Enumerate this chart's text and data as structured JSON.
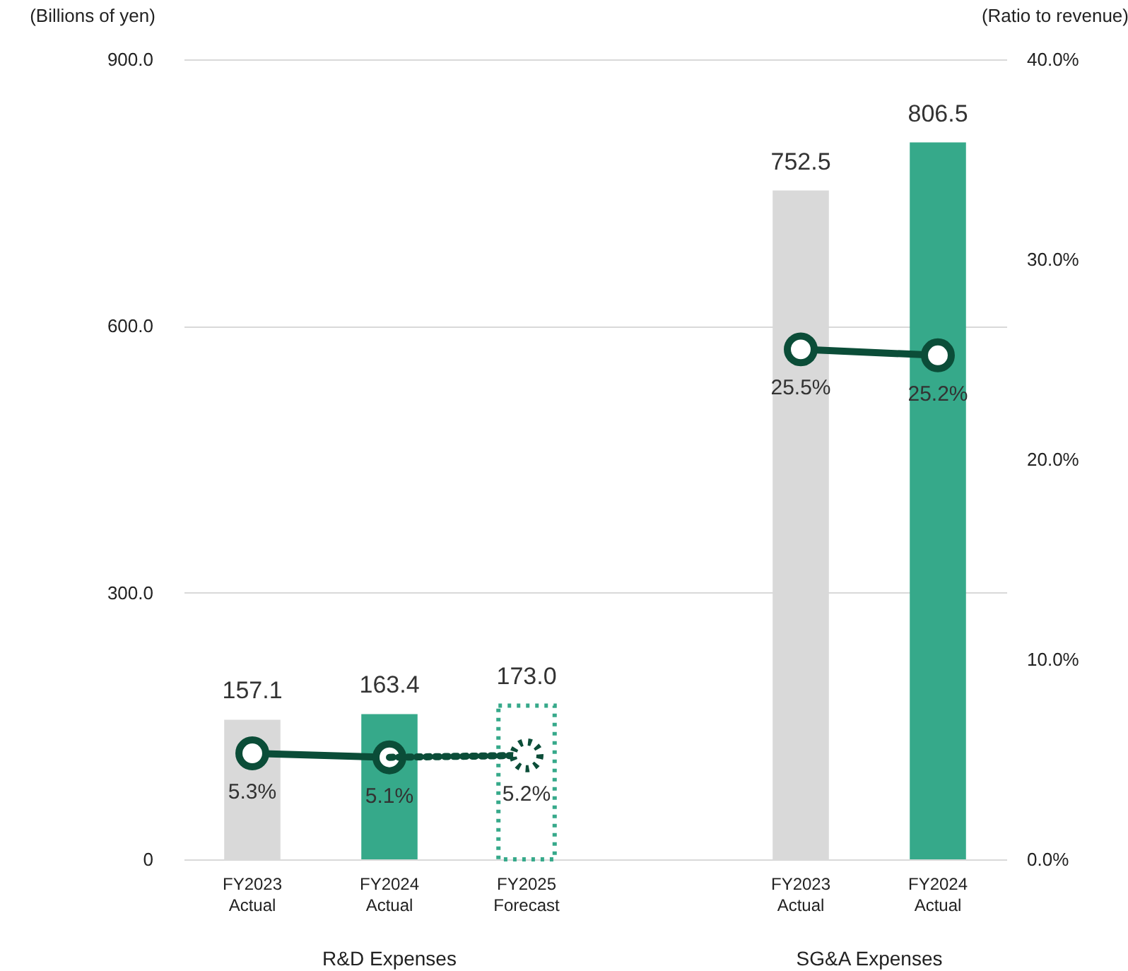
{
  "chart_data": {
    "type": "bar",
    "ylabel": "(Billions of yen)",
    "y2label": "(Ratio to revenue)",
    "categories": [
      "FY2023\nActual",
      "FY2024\nActual",
      "FY2025\nForecast",
      null,
      "FY2023\nActual",
      "FY2024\nActual"
    ],
    "ylim": [
      0,
      900
    ],
    "yticks": [
      0,
      {
        "value": 300,
        "label": "300.0"
      },
      {
        "value": 600,
        "label": "600.0"
      },
      {
        "value": 900,
        "label": "900.0"
      }
    ],
    "y2lim": [
      0,
      40
    ],
    "y2ticks": [
      {
        "value": 0,
        "label": "0.0%"
      },
      {
        "value": 10,
        "label": "10.0%"
      },
      {
        "value": 20,
        "label": "20.0%"
      },
      {
        "value": 30,
        "label": "30.0%"
      },
      {
        "value": 40,
        "label": "40.0%"
      }
    ],
    "grid": "y",
    "series": [
      {
        "colors": [
          "#d9d9d9",
          "#36a98a",
          null,
          null,
          "#d9d9d9",
          "#36a98a"
        ],
        "values": [
          157.1,
          163.4,
          null,
          null,
          752.5,
          806.5
        ],
        "value_labels": [
          "157.1",
          "163.4",
          null,
          null,
          "752.5",
          "806.5"
        ]
      },
      {
        "color": "#36a98a",
        "line_style": "dotted",
        "values": [
          null,
          null,
          173.0,
          null,
          null,
          null
        ],
        "value_labels": [
          null,
          null,
          "173.0",
          null,
          null,
          null
        ]
      },
      {
        "type": "line",
        "axis": "y2",
        "color": "#0b4d38",
        "marker": "circle",
        "line_style": "solid",
        "values": [
          5.3,
          5.1,
          null,
          null,
          25.5,
          25.2
        ],
        "value_labels": [
          "5.3%",
          "5.1%",
          null,
          null,
          "25.5%",
          "25.2%"
        ]
      },
      {
        "type": "line",
        "axis": "y2",
        "color": "#0b4d38",
        "marker": "circle",
        "line_style": "dotted",
        "values": [
          null,
          5.1,
          5.2,
          null,
          null,
          null
        ],
        "value_labels": [
          null,
          null,
          "5.2%",
          null,
          null,
          null
        ]
      }
    ],
    "annotations": [
      "R&D Expenses",
      "SG&A Expenses"
    ]
  }
}
